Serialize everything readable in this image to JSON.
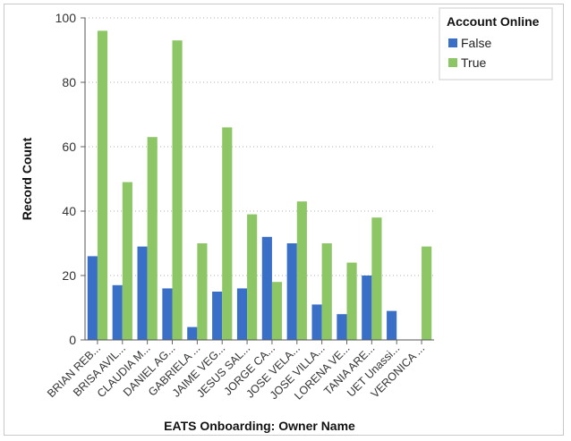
{
  "chart_data": {
    "type": "bar",
    "xlabel": "EATS Onboarding: Owner Name",
    "ylabel": "Record Count",
    "ylim": [
      0,
      100
    ],
    "yticks": [
      0,
      20,
      40,
      60,
      80,
      100
    ],
    "grid": true,
    "legend": {
      "title": "Account Online",
      "position": "top-right"
    },
    "categories": [
      "BRIAN REB...",
      "BRISA AVIL...",
      "CLAUDIA M...",
      "DANIEL AG...",
      "GABRIELA ...",
      "JAIME VEG...",
      "JESUS SAL...",
      "JORGE CA...",
      "JOSE VELA...",
      "JOSE VILLA...",
      "LORENA VE...",
      "TANIA ARE...",
      "UET Unassi...",
      "VERONICA ..."
    ],
    "series": [
      {
        "name": "False",
        "color": "#3a6fc8",
        "values": [
          26,
          17,
          29,
          16,
          4,
          15,
          16,
          32,
          30,
          11,
          8,
          20,
          9,
          0
        ]
      },
      {
        "name": "True",
        "color": "#8cc665",
        "values": [
          96,
          49,
          63,
          93,
          30,
          66,
          39,
          18,
          43,
          30,
          24,
          38,
          0,
          29
        ]
      }
    ]
  }
}
